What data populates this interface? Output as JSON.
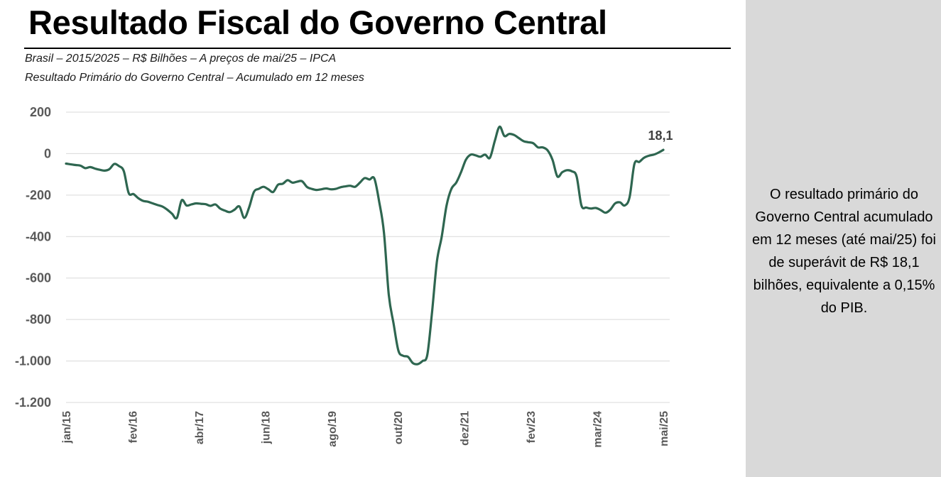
{
  "header": {
    "title": "Resultado Fiscal do Governo Central",
    "subtitle_1": "Brasil – 2015/2025 – R$ Bilhões – A preços de mai/25 – IPCA",
    "subtitle_2": "Resultado Primário do Governo Central – Acumulado em 12 meses"
  },
  "side_note": {
    "text": "O resultado primário do Governo Central acumulado em 12 meses (até mai/25) foi de superávit de R$ 18,1 bilhões, equivalente a 0,15% do PIB."
  },
  "colors": {
    "line": "#2e6650",
    "grid": "#d9d9d9",
    "panel": "#d9d9d9"
  },
  "chart_data": {
    "type": "line",
    "title": "",
    "xlabel": "",
    "ylabel": "",
    "ylim": [
      -1200,
      200
    ],
    "y_ticks": [
      200,
      0,
      -200,
      -400,
      -600,
      -800,
      -1000,
      -1200
    ],
    "y_tick_labels": [
      "200",
      "0",
      "-200",
      "-400",
      "-600",
      "-800",
      "-1.000",
      "-1.200"
    ],
    "x_tick_labels": [
      "jan/15",
      "fev/16",
      "abr/17",
      "jun/18",
      "ago/19",
      "out/20",
      "dez/21",
      "fev/23",
      "mar/24",
      "mai/25"
    ],
    "grid": "horizontal",
    "end_label": "18,1",
    "series": [
      {
        "values": [
          -48,
          -52,
          -55,
          -58,
          -70,
          -65,
          -72,
          -78,
          -82,
          -75,
          -50,
          -60,
          -85,
          -190,
          -195,
          -215,
          -228,
          -232,
          -240,
          -248,
          -255,
          -270,
          -290,
          -310,
          -225,
          -250,
          -245,
          -240,
          -242,
          -244,
          -252,
          -245,
          -265,
          -275,
          -282,
          -270,
          -255,
          -310,
          -260,
          -185,
          -170,
          -160,
          -172,
          -185,
          -150,
          -145,
          -128,
          -140,
          -135,
          -133,
          -160,
          -170,
          -175,
          -172,
          -168,
          -172,
          -170,
          -162,
          -158,
          -155,
          -160,
          -140,
          -118,
          -125,
          -120,
          -230,
          -380,
          -680,
          -820,
          -950,
          -975,
          -980,
          -1010,
          -1015,
          -1000,
          -970,
          -760,
          -520,
          -400,
          -250,
          -170,
          -140,
          -90,
          -30,
          -5,
          -8,
          -15,
          -5,
          -20,
          60,
          130,
          85,
          95,
          90,
          75,
          60,
          55,
          50,
          30,
          30,
          15,
          -30,
          -110,
          -90,
          -80,
          -85,
          -110,
          -250,
          -260,
          -265,
          -262,
          -272,
          -285,
          -270,
          -240,
          -235,
          -250,
          -210,
          -50,
          -40,
          -20,
          -10,
          -5,
          5,
          18.1
        ]
      }
    ]
  }
}
